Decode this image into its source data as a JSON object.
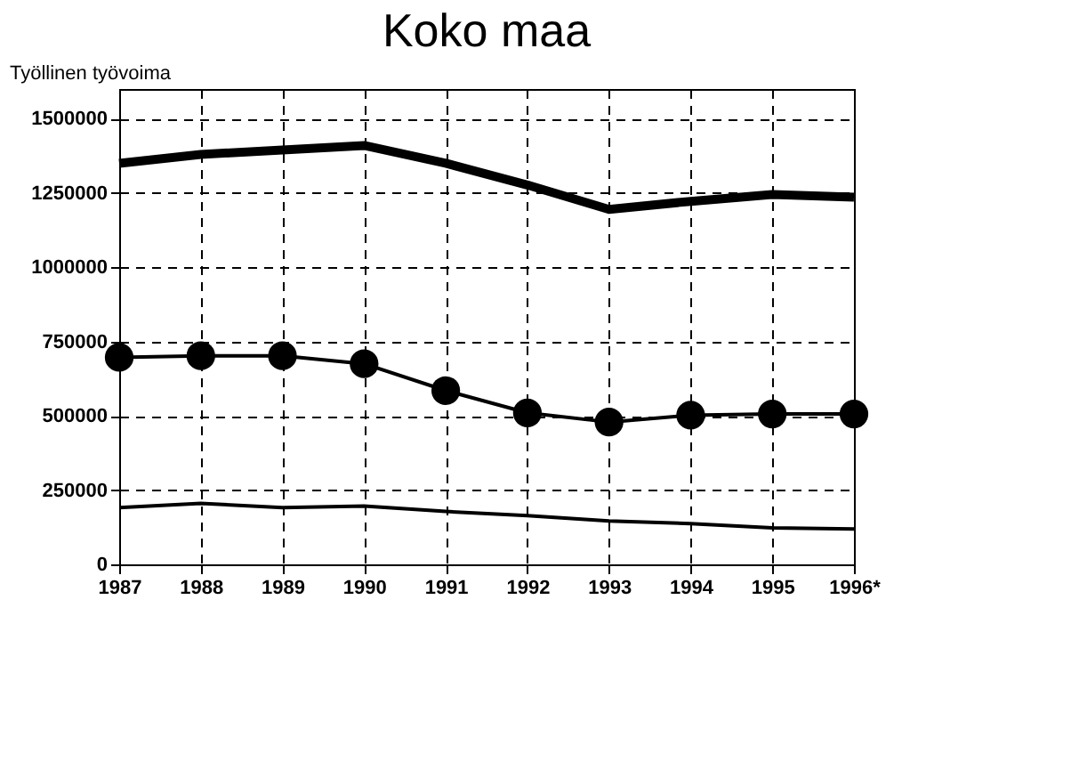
{
  "chart_data": {
    "type": "line",
    "title": "Koko maa",
    "ylabel": "Työllinen työvoima",
    "categories": [
      "1987",
      "1988",
      "1989",
      "1990",
      "1991",
      "1992",
      "1993",
      "1994",
      "1995",
      "1996*"
    ],
    "series": [
      {
        "color": "#000000",
        "marker": "none",
        "values": [
          1350000,
          1380000,
          1395000,
          1410000,
          1350000,
          1277000,
          1195000,
          1222000,
          1245000,
          1236000
        ]
      },
      {
        "color": "#000000",
        "marker": "circle",
        "values": [
          697000,
          702000,
          702000,
          675000,
          585000,
          510000,
          479000,
          502000,
          506000,
          506000
        ]
      },
      {
        "color": "#000000",
        "marker": "none",
        "values": [
          191000,
          205000,
          191000,
          196000,
          178000,
          164000,
          146000,
          137000,
          123000,
          119000
        ]
      }
    ],
    "ylim": [
      0,
      1600000
    ],
    "yticks": [
      0,
      250000,
      500000,
      750000,
      1000000,
      1250000,
      1500000
    ],
    "grid": true
  }
}
